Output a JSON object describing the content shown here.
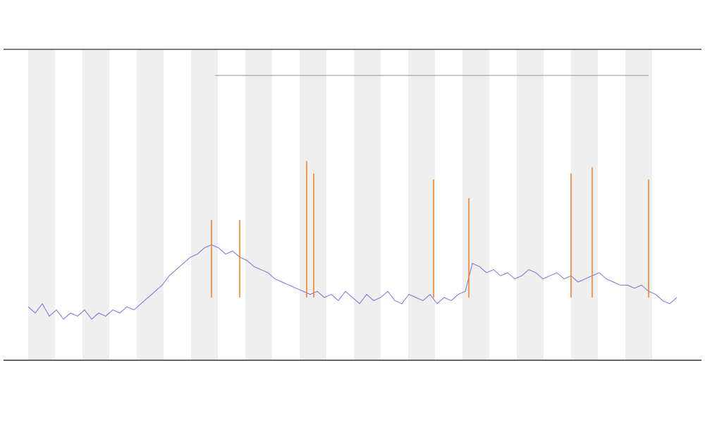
{
  "chart_data": {
    "type": "line",
    "x": [
      0,
      1,
      2,
      3,
      4,
      5,
      6,
      7,
      8,
      9,
      10,
      11,
      12,
      13,
      14,
      15,
      16,
      17,
      18,
      19,
      20,
      21,
      22,
      23,
      24,
      25,
      26,
      27,
      28,
      29,
      30,
      31,
      32,
      33,
      34,
      35,
      36,
      37,
      38,
      39,
      40,
      41,
      42,
      43,
      44,
      45,
      46,
      47,
      48,
      49,
      50,
      51,
      52,
      53,
      54,
      55,
      56,
      57,
      58,
      59,
      60,
      61,
      62,
      63,
      64,
      65,
      66,
      67,
      68,
      69,
      70,
      71,
      72,
      73,
      74,
      75,
      76,
      77,
      78,
      79,
      80,
      81,
      82,
      83,
      84,
      85,
      86,
      87,
      88,
      89,
      90,
      91,
      92
    ],
    "series": [
      {
        "color": "#3b3bd9",
        "values": [
          17,
          15,
          18,
          14,
          16,
          13,
          15,
          14,
          16,
          13,
          15,
          14,
          16,
          15,
          17,
          16,
          18,
          20,
          22,
          24,
          27,
          29,
          31,
          33,
          34,
          36,
          37,
          36,
          34,
          35,
          33,
          32,
          30,
          29,
          28,
          26,
          25,
          24,
          23,
          22,
          21,
          22,
          20,
          21,
          19,
          22,
          20,
          18,
          21,
          19,
          20,
          22,
          19,
          18,
          21,
          20,
          19,
          21,
          18,
          20,
          19,
          21,
          22,
          31,
          30,
          28,
          29,
          27,
          28,
          26,
          27,
          29,
          28,
          26,
          27,
          28,
          26,
          27,
          25,
          26,
          27,
          28,
          26,
          25,
          24,
          24,
          23,
          24,
          22,
          21,
          19,
          18,
          20
        ]
      }
    ],
    "spikes": {
      "color": "#f07d1a",
      "x": [
        26,
        30,
        39.5,
        40.5,
        57.5,
        62.5,
        77,
        80,
        88
      ],
      "values": [
        45,
        45,
        64,
        60,
        58,
        52,
        60,
        62,
        58
      ]
    },
    "xlim": [
      -4,
      96
    ],
    "ylim": [
      0,
      100
    ],
    "grid": false
  }
}
